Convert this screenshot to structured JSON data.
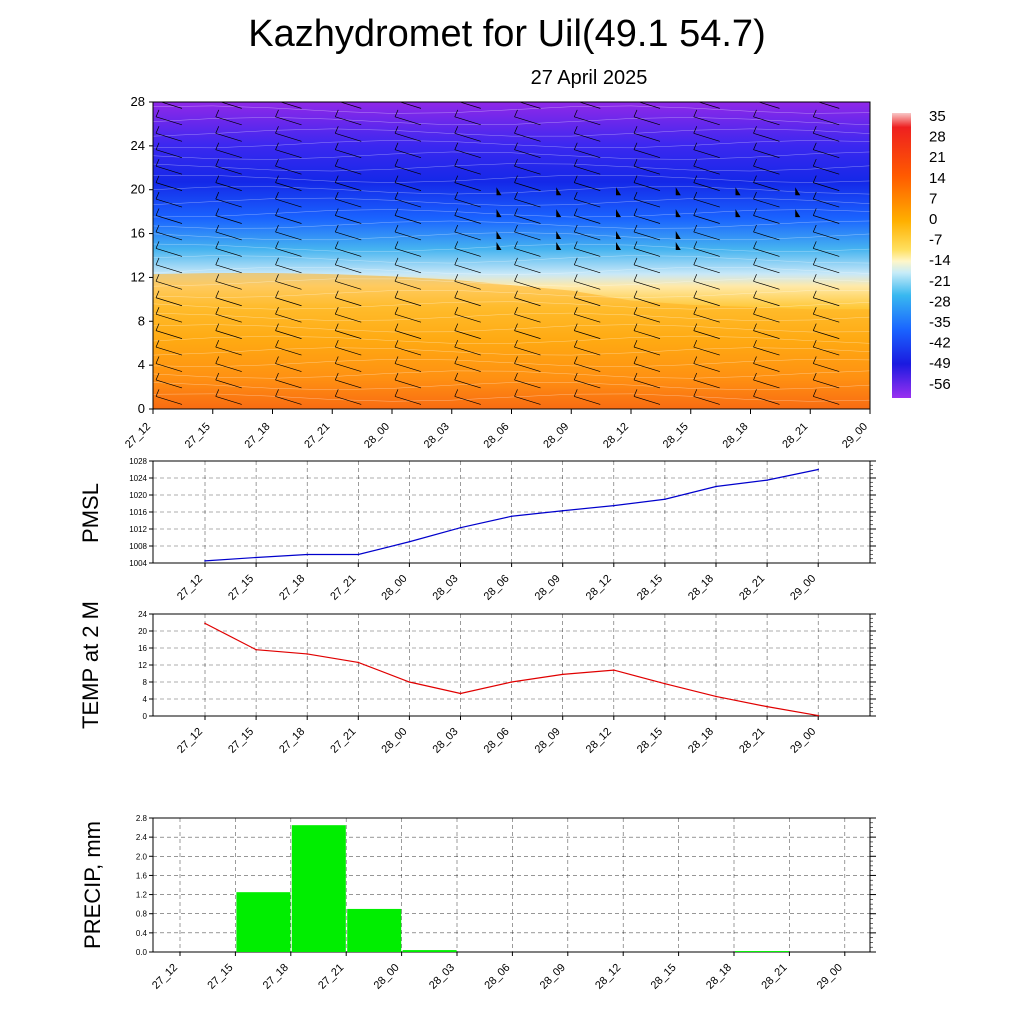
{
  "title": "Kazhydromet for Uil(49.1 54.7)",
  "subtitle": "27 April 2025",
  "colors": {
    "pmsl_line": "#0000cc",
    "temp_line": "#e00000",
    "precip_bar": "#00ee00"
  },
  "chart_data": [
    {
      "type": "heatmap",
      "name": "cross-section",
      "x_ticks": [
        "27_12",
        "27_15",
        "27_18",
        "27_21",
        "28_00",
        "28_03",
        "28_06",
        "28_09",
        "28_12",
        "28_15",
        "28_18",
        "28_21",
        "29_00"
      ],
      "y_ticks": [
        "0",
        "4",
        "8",
        "12",
        "16",
        "20",
        "24",
        "28"
      ],
      "ylim": [
        0,
        28
      ],
      "colorbar_ticks": [
        "35",
        "28",
        "21",
        "14",
        "7",
        "0",
        "-7",
        "-14",
        "-21",
        "-28",
        "-35",
        "-42",
        "-49",
        "-56"
      ],
      "colorbar_range": [
        -63,
        42
      ],
      "freezing_level": [
        12.3,
        12.4,
        12.4,
        12.3,
        12.1,
        11.8,
        11.3,
        10.8,
        9.9,
        9.5,
        9.3,
        9.1,
        9.1
      ],
      "wind_barbs": true
    },
    {
      "type": "line",
      "name": "pmsl",
      "ylabel": "PMSL",
      "categories": [
        "27_12",
        "27_15",
        "27_18",
        "27_21",
        "28_00",
        "28_03",
        "28_06",
        "28_09",
        "28_12",
        "28_15",
        "28_18",
        "28_21",
        "29_00"
      ],
      "values": [
        1004.5,
        1005.3,
        1006.0,
        1006.0,
        1009.0,
        1012.3,
        1015.0,
        1016.3,
        1017.5,
        1019.0,
        1022.0,
        1023.5,
        1026.0
      ],
      "ylim": [
        1004,
        1028
      ],
      "y_ticks": [
        "1004",
        "1008",
        "1012",
        "1016",
        "1020",
        "1024",
        "1028"
      ]
    },
    {
      "type": "line",
      "name": "temp2m",
      "ylabel": "TEMP at 2 M",
      "categories": [
        "27_12",
        "27_15",
        "27_18",
        "27_21",
        "28_00",
        "28_03",
        "28_06",
        "28_09",
        "28_12",
        "28_15",
        "28_18",
        "28_21",
        "29_00"
      ],
      "values": [
        21.8,
        15.6,
        14.6,
        12.6,
        8.0,
        5.3,
        8.0,
        9.8,
        10.8,
        7.6,
        4.6,
        2.2,
        0.1
      ],
      "ylim": [
        0,
        24
      ],
      "y_ticks": [
        "0",
        "4",
        "8",
        "12",
        "16",
        "20",
        "24"
      ]
    },
    {
      "type": "bar",
      "name": "precip",
      "ylabel": "PRECIP, mm",
      "categories": [
        "27_12",
        "27_15",
        "27_18",
        "27_21",
        "28_00",
        "28_03",
        "28_06",
        "28_09",
        "28_12",
        "28_15",
        "28_18",
        "28_21",
        "29_00"
      ],
      "values": [
        0,
        1.25,
        2.65,
        0.9,
        0.04,
        0,
        0,
        0,
        0,
        0,
        0.02,
        0,
        0
      ],
      "ylim": [
        0,
        2.8
      ],
      "y_ticks": [
        "0.0",
        "0.4",
        "0.8",
        "1.2",
        "1.6",
        "2.0",
        "2.4",
        "2.8"
      ]
    }
  ]
}
